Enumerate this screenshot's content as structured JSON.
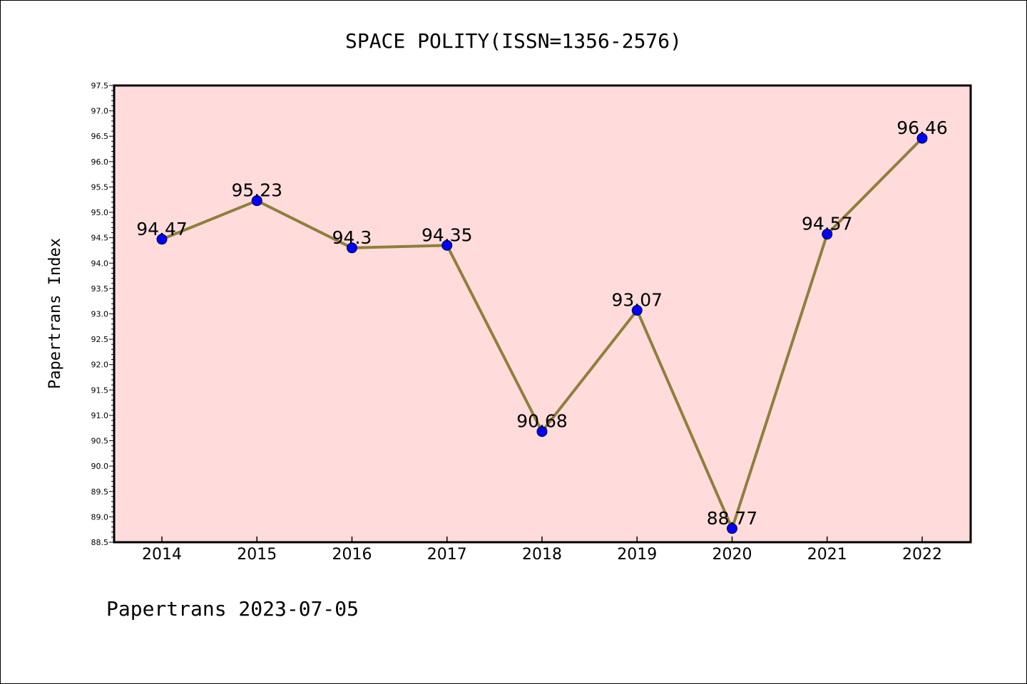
{
  "chart_data": {
    "type": "line",
    "title": "SPACE POLITY(ISSN=1356-2576)",
    "xlabel": "",
    "ylabel": "Papertrans Index",
    "categories": [
      "2014",
      "2015",
      "2016",
      "2017",
      "2018",
      "2019",
      "2020",
      "2021",
      "2022"
    ],
    "series": [
      {
        "values": [
          94.47,
          95.23,
          94.3,
          94.35,
          90.68,
          93.07,
          88.77,
          94.57,
          96.46
        ],
        "labels": [
          "94.47",
          "95.23",
          "94.3",
          "94.35",
          "90.68",
          "93.07",
          "88.77",
          "94.57",
          "96.46"
        ]
      }
    ],
    "ylim": [
      88.5,
      97.5
    ],
    "ytick_step": 0.5,
    "grid": false,
    "line_color": "#8f7f3c",
    "marker_color": "#0000ff",
    "plot_background": "#ffdcdb"
  },
  "footer": {
    "text": "Papertrans 2023-07-05"
  }
}
